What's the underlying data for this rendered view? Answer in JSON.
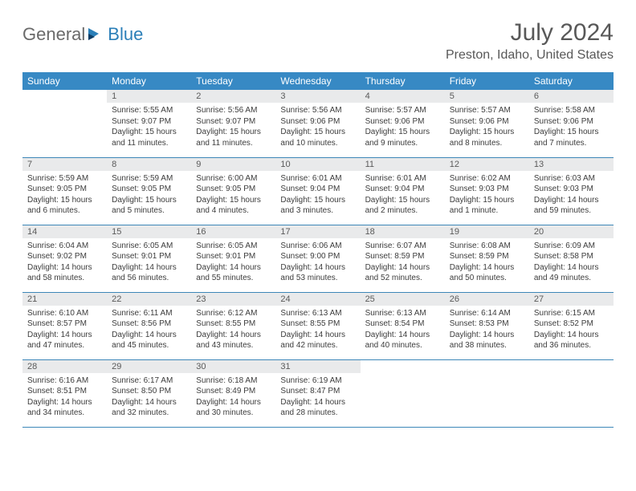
{
  "logo": {
    "gray": "General",
    "blue": "Blue"
  },
  "title": "July 2024",
  "location": "Preston, Idaho, United States",
  "colors": {
    "header_bg": "#3789c4",
    "header_text": "#ffffff",
    "daynum_bg": "#e9eaeb",
    "border": "#3d87b8",
    "title_text": "#585858",
    "body_text": "#3c3c3c"
  },
  "weekdays": [
    "Sunday",
    "Monday",
    "Tuesday",
    "Wednesday",
    "Thursday",
    "Friday",
    "Saturday"
  ],
  "start_offset": 1,
  "days": [
    {
      "n": 1,
      "sunrise": "5:55 AM",
      "sunset": "9:07 PM",
      "daylight": "15 hours and 11 minutes."
    },
    {
      "n": 2,
      "sunrise": "5:56 AM",
      "sunset": "9:07 PM",
      "daylight": "15 hours and 11 minutes."
    },
    {
      "n": 3,
      "sunrise": "5:56 AM",
      "sunset": "9:06 PM",
      "daylight": "15 hours and 10 minutes."
    },
    {
      "n": 4,
      "sunrise": "5:57 AM",
      "sunset": "9:06 PM",
      "daylight": "15 hours and 9 minutes."
    },
    {
      "n": 5,
      "sunrise": "5:57 AM",
      "sunset": "9:06 PM",
      "daylight": "15 hours and 8 minutes."
    },
    {
      "n": 6,
      "sunrise": "5:58 AM",
      "sunset": "9:06 PM",
      "daylight": "15 hours and 7 minutes."
    },
    {
      "n": 7,
      "sunrise": "5:59 AM",
      "sunset": "9:05 PM",
      "daylight": "15 hours and 6 minutes."
    },
    {
      "n": 8,
      "sunrise": "5:59 AM",
      "sunset": "9:05 PM",
      "daylight": "15 hours and 5 minutes."
    },
    {
      "n": 9,
      "sunrise": "6:00 AM",
      "sunset": "9:05 PM",
      "daylight": "15 hours and 4 minutes."
    },
    {
      "n": 10,
      "sunrise": "6:01 AM",
      "sunset": "9:04 PM",
      "daylight": "15 hours and 3 minutes."
    },
    {
      "n": 11,
      "sunrise": "6:01 AM",
      "sunset": "9:04 PM",
      "daylight": "15 hours and 2 minutes."
    },
    {
      "n": 12,
      "sunrise": "6:02 AM",
      "sunset": "9:03 PM",
      "daylight": "15 hours and 1 minute."
    },
    {
      "n": 13,
      "sunrise": "6:03 AM",
      "sunset": "9:03 PM",
      "daylight": "14 hours and 59 minutes."
    },
    {
      "n": 14,
      "sunrise": "6:04 AM",
      "sunset": "9:02 PM",
      "daylight": "14 hours and 58 minutes."
    },
    {
      "n": 15,
      "sunrise": "6:05 AM",
      "sunset": "9:01 PM",
      "daylight": "14 hours and 56 minutes."
    },
    {
      "n": 16,
      "sunrise": "6:05 AM",
      "sunset": "9:01 PM",
      "daylight": "14 hours and 55 minutes."
    },
    {
      "n": 17,
      "sunrise": "6:06 AM",
      "sunset": "9:00 PM",
      "daylight": "14 hours and 53 minutes."
    },
    {
      "n": 18,
      "sunrise": "6:07 AM",
      "sunset": "8:59 PM",
      "daylight": "14 hours and 52 minutes."
    },
    {
      "n": 19,
      "sunrise": "6:08 AM",
      "sunset": "8:59 PM",
      "daylight": "14 hours and 50 minutes."
    },
    {
      "n": 20,
      "sunrise": "6:09 AM",
      "sunset": "8:58 PM",
      "daylight": "14 hours and 49 minutes."
    },
    {
      "n": 21,
      "sunrise": "6:10 AM",
      "sunset": "8:57 PM",
      "daylight": "14 hours and 47 minutes."
    },
    {
      "n": 22,
      "sunrise": "6:11 AM",
      "sunset": "8:56 PM",
      "daylight": "14 hours and 45 minutes."
    },
    {
      "n": 23,
      "sunrise": "6:12 AM",
      "sunset": "8:55 PM",
      "daylight": "14 hours and 43 minutes."
    },
    {
      "n": 24,
      "sunrise": "6:13 AM",
      "sunset": "8:55 PM",
      "daylight": "14 hours and 42 minutes."
    },
    {
      "n": 25,
      "sunrise": "6:13 AM",
      "sunset": "8:54 PM",
      "daylight": "14 hours and 40 minutes."
    },
    {
      "n": 26,
      "sunrise": "6:14 AM",
      "sunset": "8:53 PM",
      "daylight": "14 hours and 38 minutes."
    },
    {
      "n": 27,
      "sunrise": "6:15 AM",
      "sunset": "8:52 PM",
      "daylight": "14 hours and 36 minutes."
    },
    {
      "n": 28,
      "sunrise": "6:16 AM",
      "sunset": "8:51 PM",
      "daylight": "14 hours and 34 minutes."
    },
    {
      "n": 29,
      "sunrise": "6:17 AM",
      "sunset": "8:50 PM",
      "daylight": "14 hours and 32 minutes."
    },
    {
      "n": 30,
      "sunrise": "6:18 AM",
      "sunset": "8:49 PM",
      "daylight": "14 hours and 30 minutes."
    },
    {
      "n": 31,
      "sunrise": "6:19 AM",
      "sunset": "8:47 PM",
      "daylight": "14 hours and 28 minutes."
    }
  ],
  "labels": {
    "sunrise": "Sunrise:",
    "sunset": "Sunset:",
    "daylight": "Daylight:"
  }
}
